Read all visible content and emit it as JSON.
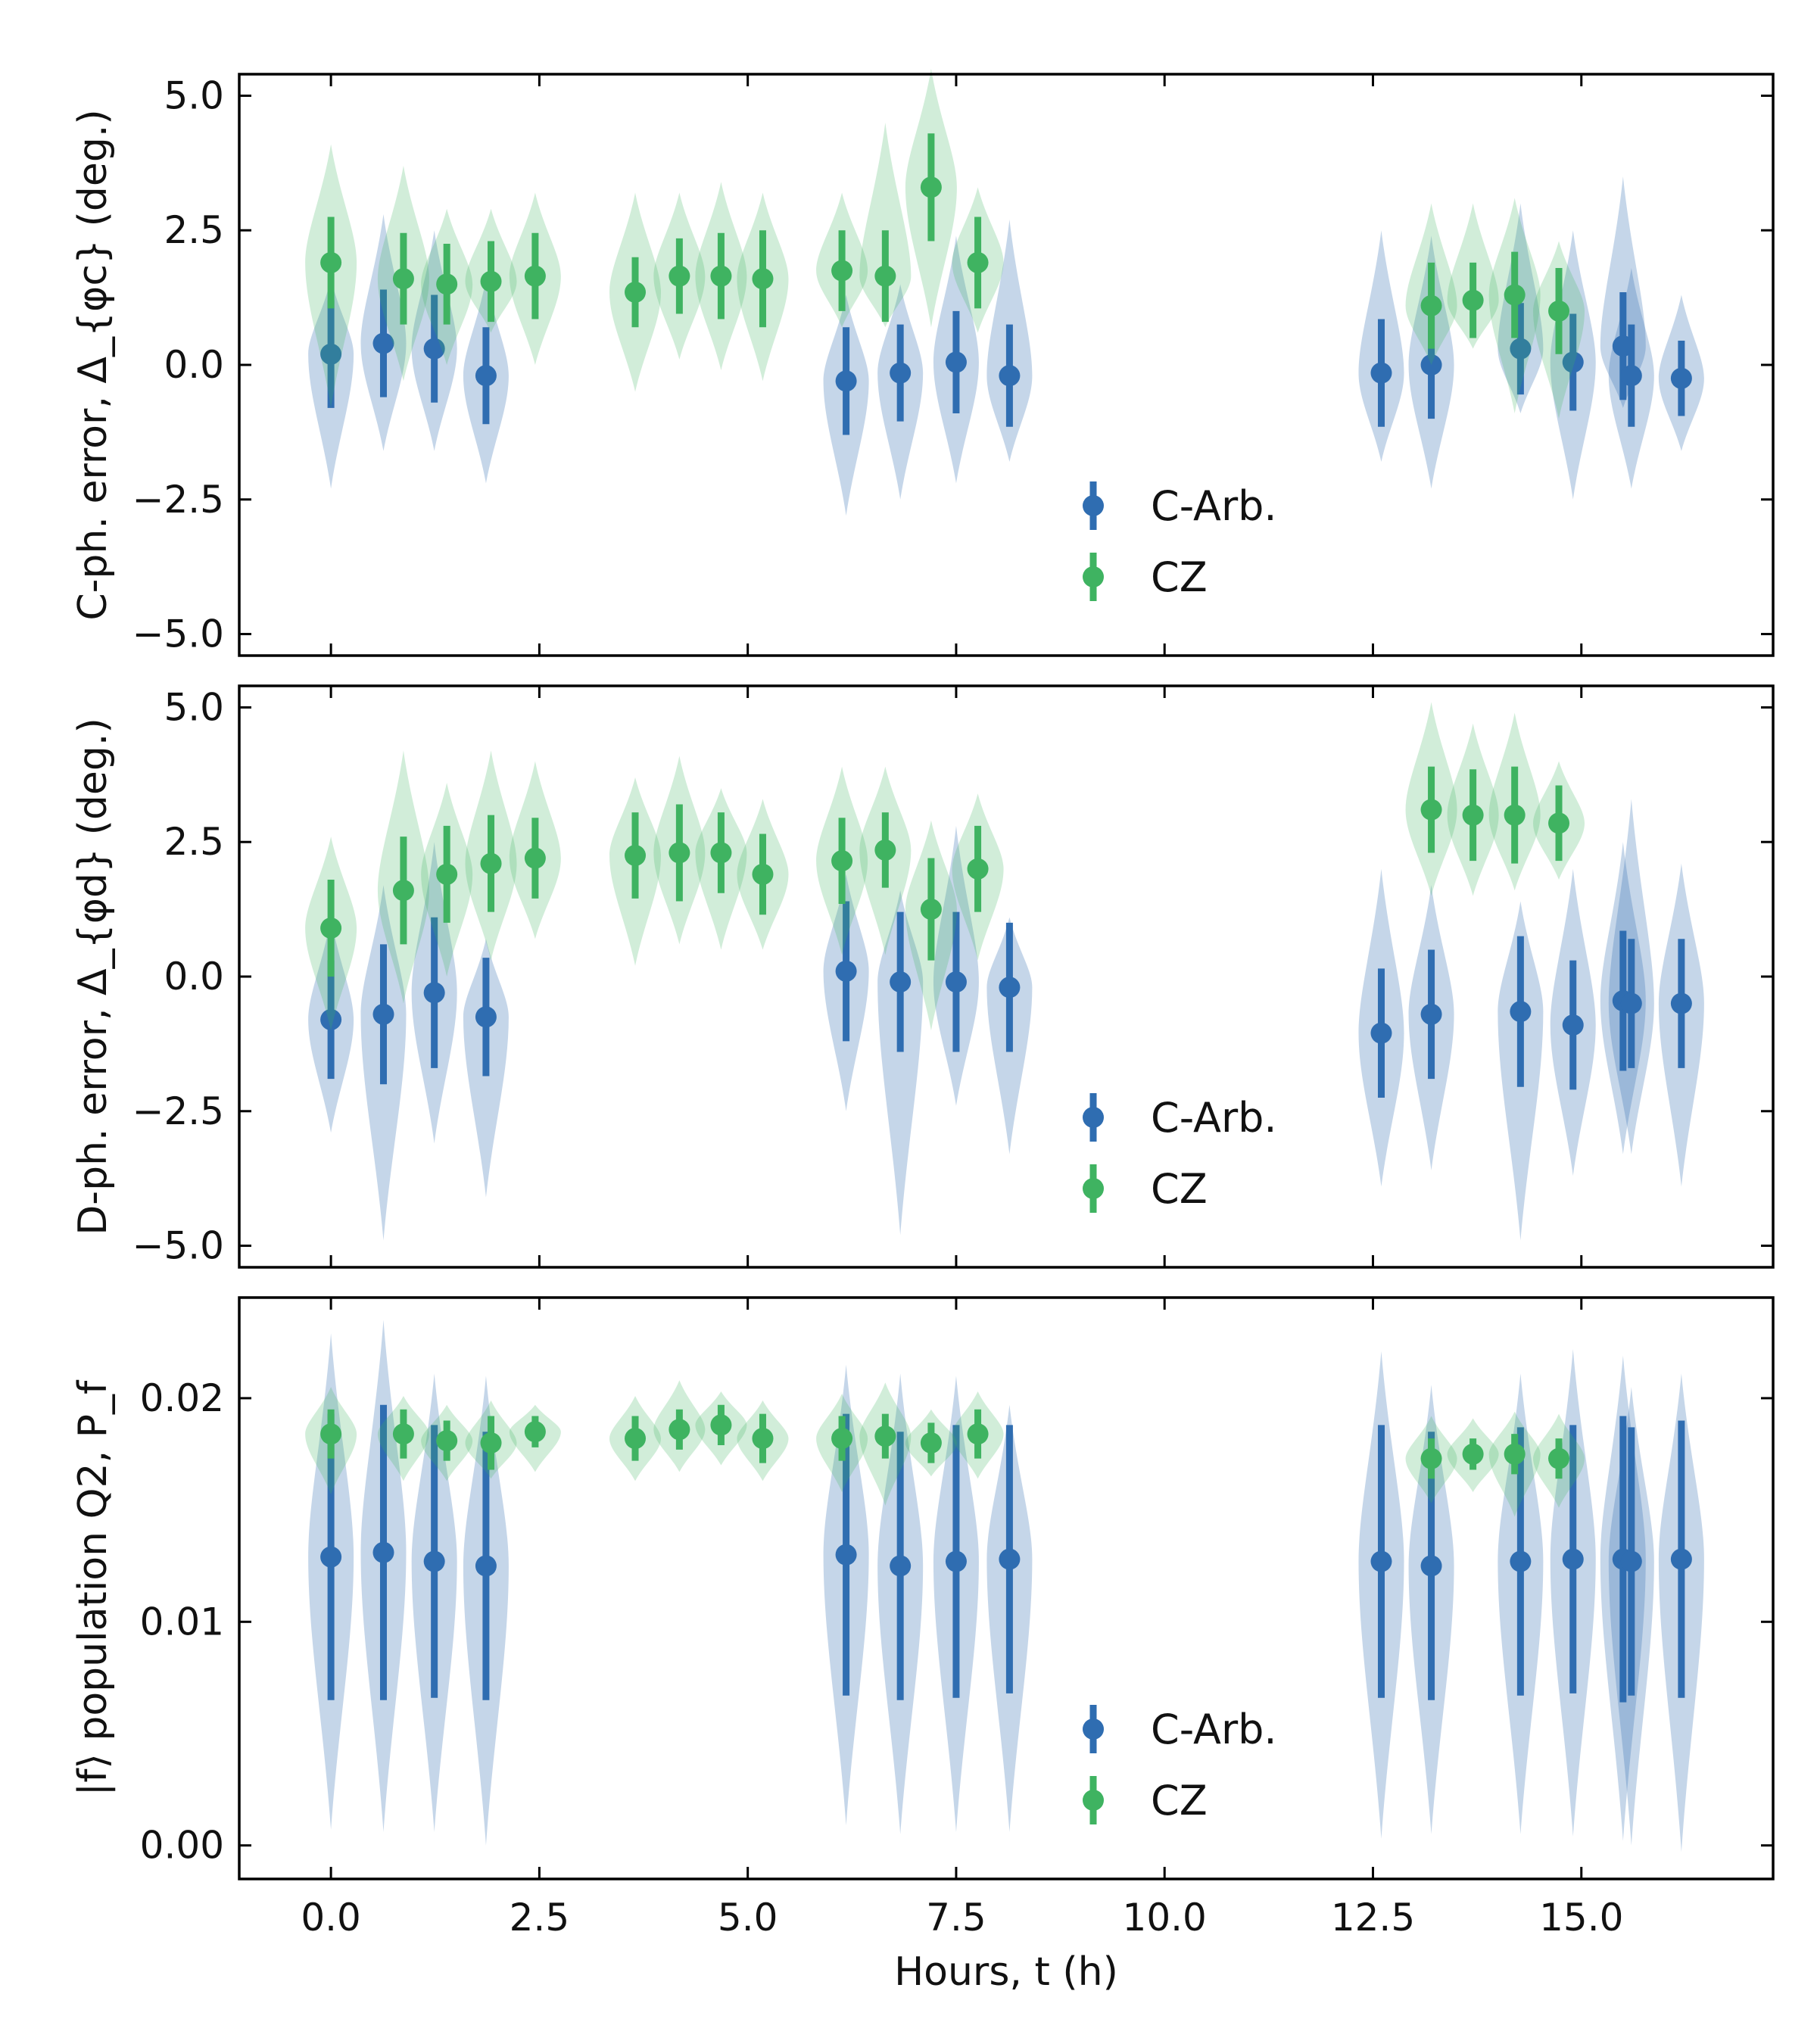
{
  "chart_data": [
    {
      "type": "scatter",
      "ylabel": "C-ph. error, Δ_{φc} (deg.)",
      "ylim": [
        -5.4,
        5.4
      ],
      "yticks": [
        5.0,
        2.5,
        0.0,
        -2.5,
        -5.0
      ],
      "ytick_labels": [
        "5.0",
        "2.5",
        "0.0",
        "−2.5",
        "−5.0"
      ],
      "xlim": [
        -1.1,
        17.3
      ],
      "xticks": [
        0.0,
        2.5,
        5.0,
        7.5,
        10.0,
        12.5,
        15.0
      ],
      "legend": "lower center",
      "series": [
        {
          "name": "C-Arb.",
          "color": "#2f6db1",
          "x": [
            0.0,
            0.63,
            1.24,
            1.86,
            6.18,
            6.83,
            7.5,
            8.14,
            12.6,
            13.2,
            14.27,
            14.9,
            15.5,
            15.6,
            16.2
          ],
          "y": [
            0.2,
            0.4,
            0.3,
            -0.2,
            -0.3,
            -0.15,
            0.05,
            -0.2,
            -0.15,
            0.0,
            0.3,
            0.05,
            0.35,
            -0.2,
            -0.25
          ],
          "err": [
            1.0,
            1.0,
            1.0,
            0.9,
            1.0,
            0.9,
            0.95,
            0.95,
            1.0,
            1.0,
            0.85,
            0.9,
            1.0,
            0.95,
            0.7
          ],
          "spread": [
            [
              -2.3,
              1.6
            ],
            [
              -1.6,
              2.8
            ],
            [
              -1.6,
              2.5
            ],
            [
              -2.2,
              1.6
            ],
            [
              -2.8,
              1.3
            ],
            [
              -2.5,
              1.5
            ],
            [
              -2.2,
              2.4
            ],
            [
              -1.8,
              2.7
            ],
            [
              -1.8,
              2.5
            ],
            [
              -2.3,
              2.4
            ],
            [
              -0.9,
              3.0
            ],
            [
              -2.5,
              2.5
            ],
            [
              -0.8,
              3.5
            ],
            [
              -2.3,
              1.8
            ],
            [
              -1.6,
              1.3
            ]
          ]
        },
        {
          "name": "CZ",
          "color": "#3fb361",
          "x": [
            0.0,
            0.87,
            1.39,
            1.92,
            2.45,
            3.65,
            4.18,
            4.68,
            5.18,
            6.13,
            6.65,
            7.2,
            7.76,
            13.2,
            13.7,
            14.2,
            14.73
          ],
          "y": [
            1.9,
            1.6,
            1.5,
            1.55,
            1.65,
            1.35,
            1.65,
            1.65,
            1.6,
            1.75,
            1.65,
            3.3,
            1.9,
            1.1,
            1.2,
            1.3,
            1.0
          ],
          "err": [
            0.85,
            0.85,
            0.75,
            0.75,
            0.8,
            0.65,
            0.7,
            0.8,
            0.9,
            0.75,
            0.85,
            1.0,
            0.85,
            0.8,
            0.7,
            0.8,
            0.8
          ],
          "spread": [
            [
              -0.8,
              4.1
            ],
            [
              -0.3,
              3.7
            ],
            [
              0.0,
              2.9
            ],
            [
              0.6,
              2.9
            ],
            [
              0.0,
              3.2
            ],
            [
              -0.5,
              3.2
            ],
            [
              0.1,
              3.2
            ],
            [
              -0.1,
              3.4
            ],
            [
              -0.3,
              3.2
            ],
            [
              0.7,
              3.2
            ],
            [
              0.7,
              4.5
            ],
            [
              0.7,
              5.5
            ],
            [
              0.6,
              3.3
            ],
            [
              0.0,
              3.0
            ],
            [
              0.3,
              3.0
            ],
            [
              -0.9,
              3.1
            ],
            [
              -1.0,
              2.3
            ]
          ]
        }
      ]
    },
    {
      "type": "scatter",
      "ylabel": "D-ph. error, Δ_{φd} (deg.)",
      "ylim": [
        -5.4,
        5.4
      ],
      "yticks": [
        5.0,
        2.5,
        0.0,
        -2.5,
        -5.0
      ],
      "ytick_labels": [
        "5.0",
        "2.5",
        "0.0",
        "−2.5",
        "−5.0"
      ],
      "xlim": [
        -1.1,
        17.3
      ],
      "xticks": [
        0.0,
        2.5,
        5.0,
        7.5,
        10.0,
        12.5,
        15.0
      ],
      "legend": "lower center",
      "series": [
        {
          "name": "C-Arb.",
          "color": "#2f6db1",
          "x": [
            0.0,
            0.63,
            1.24,
            1.86,
            6.18,
            6.83,
            7.5,
            8.14,
            12.6,
            13.2,
            14.27,
            14.9,
            15.5,
            15.6,
            16.2
          ],
          "y": [
            -0.8,
            -0.7,
            -0.3,
            -0.75,
            0.1,
            -0.1,
            -0.1,
            -0.2,
            -1.05,
            -0.7,
            -0.65,
            -0.9,
            -0.45,
            -0.5,
            -0.5
          ],
          "err": [
            1.1,
            1.3,
            1.4,
            1.1,
            1.3,
            1.3,
            1.3,
            1.2,
            1.2,
            1.2,
            1.4,
            1.2,
            1.3,
            1.2,
            1.2
          ],
          "spread": [
            [
              -2.9,
              1.1
            ],
            [
              -4.9,
              1.7
            ],
            [
              -3.1,
              2.5
            ],
            [
              -4.1,
              0.7
            ],
            [
              -2.5,
              1.9
            ],
            [
              -4.8,
              1.6
            ],
            [
              -2.4,
              2.8
            ],
            [
              -3.3,
              1.1
            ],
            [
              -3.9,
              2.0
            ],
            [
              -3.6,
              1.7
            ],
            [
              -4.9,
              1.4
            ],
            [
              -3.7,
              2.0
            ],
            [
              -3.3,
              2.5
            ],
            [
              -3.3,
              3.3
            ],
            [
              -3.9,
              2.1
            ]
          ]
        },
        {
          "name": "CZ",
          "color": "#3fb361",
          "x": [
            0.0,
            0.87,
            1.39,
            1.92,
            2.45,
            3.65,
            4.18,
            4.68,
            5.18,
            6.13,
            6.65,
            7.2,
            7.76,
            13.2,
            13.7,
            14.2,
            14.73
          ],
          "y": [
            0.9,
            1.6,
            1.9,
            2.1,
            2.2,
            2.25,
            2.3,
            2.3,
            1.9,
            2.15,
            2.35,
            1.25,
            2.0,
            3.1,
            3.0,
            3.0,
            2.85
          ],
          "err": [
            0.9,
            1.0,
            0.9,
            0.9,
            0.75,
            0.8,
            0.9,
            0.75,
            0.75,
            0.8,
            0.7,
            0.95,
            0.8,
            0.8,
            0.85,
            0.9,
            0.7
          ],
          "spread": [
            [
              -1.0,
              2.6
            ],
            [
              -0.5,
              4.2
            ],
            [
              0.0,
              3.6
            ],
            [
              0.3,
              4.2
            ],
            [
              0.7,
              4.0
            ],
            [
              0.2,
              3.7
            ],
            [
              0.6,
              4.1
            ],
            [
              0.5,
              3.5
            ],
            [
              0.5,
              3.3
            ],
            [
              0.4,
              3.9
            ],
            [
              0.4,
              3.9
            ],
            [
              -1.0,
              2.9
            ],
            [
              0.3,
              3.4
            ],
            [
              1.5,
              5.1
            ],
            [
              1.5,
              4.7
            ],
            [
              1.6,
              4.9
            ],
            [
              1.8,
              4.0
            ]
          ]
        }
      ]
    },
    {
      "type": "scatter",
      "ylabel": "|f⟩ population Q2, P_f",
      "xlabel": "Hours, t (h)",
      "ylim": [
        -0.0015,
        0.0245
      ],
      "yticks": [
        0.02,
        0.01,
        0.0
      ],
      "ytick_labels": [
        "0.02",
        "0.01",
        "0.00"
      ],
      "xlim": [
        -1.1,
        17.3
      ],
      "xticks": [
        0.0,
        2.5,
        5.0,
        7.5,
        10.0,
        12.5,
        15.0
      ],
      "xtick_labels": [
        "0.0",
        "2.5",
        "5.0",
        "7.5",
        "10.0",
        "12.5",
        "15.0"
      ],
      "legend": "lower center",
      "series": [
        {
          "name": "C-Arb.",
          "color": "#2f6db1",
          "x": [
            0.0,
            0.63,
            1.24,
            1.86,
            6.18,
            6.83,
            7.5,
            8.14,
            12.6,
            13.2,
            14.27,
            14.9,
            15.5,
            15.6,
            16.2
          ],
          "y": [
            0.0129,
            0.0131,
            0.0127,
            0.0125,
            0.013,
            0.0125,
            0.0127,
            0.0128,
            0.0127,
            0.0125,
            0.0127,
            0.0128,
            0.0128,
            0.0127,
            0.0128
          ],
          "err": [
            0.0064,
            0.0066,
            0.0061,
            0.006,
            0.0063,
            0.006,
            0.0061,
            0.006,
            0.0061,
            0.006,
            0.006,
            0.006,
            0.0064,
            0.006,
            0.0062
          ],
          "spread": [
            [
              0.0007,
              0.0229
            ],
            [
              0.0006,
              0.0235
            ],
            [
              0.0006,
              0.0211
            ],
            [
              0.0,
              0.021
            ],
            [
              0.0009,
              0.0215
            ],
            [
              0.0005,
              0.0211
            ],
            [
              0.0006,
              0.021
            ],
            [
              0.0006,
              0.0197
            ],
            [
              0.0003,
              0.0221
            ],
            [
              0.0005,
              0.0206
            ],
            [
              0.0005,
              0.0211
            ],
            [
              0.0004,
              0.0222
            ],
            [
              0.0002,
              0.0219
            ],
            [
              0.0,
              0.0205
            ],
            [
              -0.0003,
              0.0211
            ]
          ]
        },
        {
          "name": "CZ",
          "color": "#3fb361",
          "x": [
            0.0,
            0.87,
            1.39,
            1.92,
            2.45,
            3.65,
            4.18,
            4.68,
            5.18,
            6.13,
            6.65,
            7.2,
            7.76,
            13.2,
            13.7,
            14.2,
            14.73
          ],
          "y": [
            0.0184,
            0.0184,
            0.0181,
            0.018,
            0.0185,
            0.0182,
            0.0186,
            0.0188,
            0.0182,
            0.0182,
            0.0183,
            0.018,
            0.0184,
            0.0173,
            0.0175,
            0.0175,
            0.0173
          ],
          "err": [
            0.0011,
            0.0011,
            0.0009,
            0.0012,
            0.0007,
            0.001,
            0.0009,
            0.0009,
            0.0011,
            0.001,
            0.001,
            0.0009,
            0.0011,
            0.0009,
            0.0007,
            0.0009,
            0.0009
          ],
          "spread": [
            [
              0.0157,
              0.0205
            ],
            [
              0.0163,
              0.0201
            ],
            [
              0.0163,
              0.0197
            ],
            [
              0.0164,
              0.0199
            ],
            [
              0.0167,
              0.0197
            ],
            [
              0.0163,
              0.0201
            ],
            [
              0.0167,
              0.0208
            ],
            [
              0.017,
              0.0203
            ],
            [
              0.0163,
              0.0199
            ],
            [
              0.0158,
              0.0202
            ],
            [
              0.0152,
              0.0207
            ],
            [
              0.0165,
              0.0195
            ],
            [
              0.0164,
              0.0203
            ],
            [
              0.0153,
              0.0192
            ],
            [
              0.0158,
              0.0191
            ],
            [
              0.0147,
              0.0194
            ],
            [
              0.0151,
              0.0193
            ]
          ]
        }
      ]
    }
  ]
}
